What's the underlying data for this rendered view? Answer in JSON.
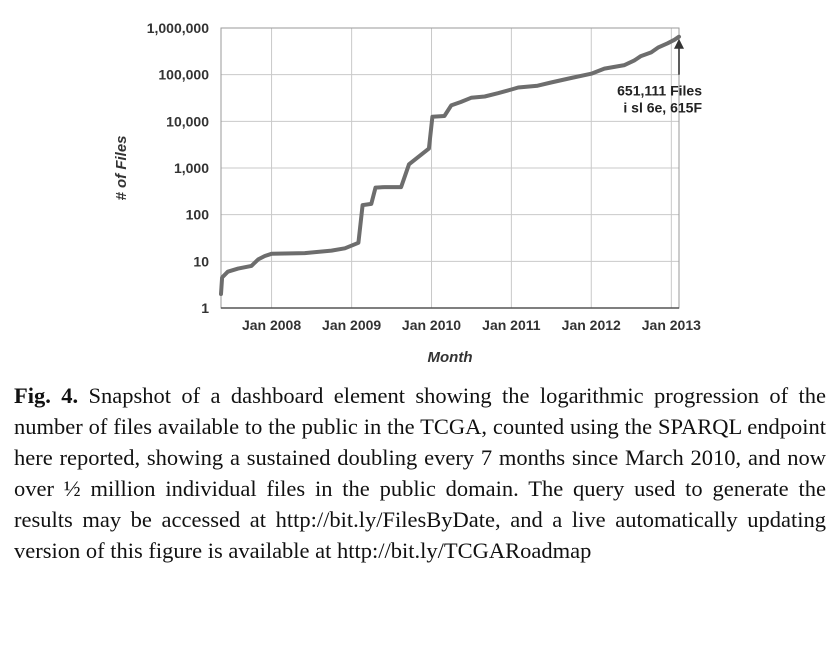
{
  "chart_data": {
    "type": "line",
    "xlabel": "Month",
    "ylabel": "# of Files",
    "yscale": "log",
    "ylim": [
      1,
      1000000
    ],
    "xlim": [
      "2007-05-15",
      "2013-02-05"
    ],
    "y_ticks": [
      {
        "value": 1,
        "label": "1"
      },
      {
        "value": 10,
        "label": "10"
      },
      {
        "value": 100,
        "label": "100"
      },
      {
        "value": 1000,
        "label": "1,000"
      },
      {
        "value": 10000,
        "label": "10,000"
      },
      {
        "value": 100000,
        "label": "100,000"
      },
      {
        "value": 1000000,
        "label": "1,000,000"
      }
    ],
    "x_ticks": [
      {
        "value": "2008-01-01",
        "label": "Jan 2008"
      },
      {
        "value": "2009-01-01",
        "label": "Jan 2009"
      },
      {
        "value": "2010-01-01",
        "label": "Jan 2010"
      },
      {
        "value": "2011-01-01",
        "label": "Jan 2011"
      },
      {
        "value": "2012-01-01",
        "label": "Jan 2012"
      },
      {
        "value": "2013-01-01",
        "label": "Jan 2013"
      }
    ],
    "grid": true,
    "line_color": "#6d6d6d",
    "series": [
      {
        "points": [
          {
            "x": "2007-05-15",
            "y": 2
          },
          {
            "x": "2007-05-20",
            "y": 4.5
          },
          {
            "x": "2007-06-15",
            "y": 6
          },
          {
            "x": "2007-08-01",
            "y": 7
          },
          {
            "x": "2007-10-01",
            "y": 8
          },
          {
            "x": "2007-11-01",
            "y": 11
          },
          {
            "x": "2007-12-01",
            "y": 13
          },
          {
            "x": "2008-01-01",
            "y": 14.5
          },
          {
            "x": "2008-06-01",
            "y": 15
          },
          {
            "x": "2008-10-01",
            "y": 17
          },
          {
            "x": "2008-12-01",
            "y": 19
          },
          {
            "x": "2009-02-01",
            "y": 25
          },
          {
            "x": "2009-02-20",
            "y": 160
          },
          {
            "x": "2009-04-01",
            "y": 170
          },
          {
            "x": "2009-04-20",
            "y": 380
          },
          {
            "x": "2009-06-01",
            "y": 390
          },
          {
            "x": "2009-08-15",
            "y": 390
          },
          {
            "x": "2009-09-20",
            "y": 1200
          },
          {
            "x": "2009-12-20",
            "y": 2600
          },
          {
            "x": "2010-01-05",
            "y": 12500
          },
          {
            "x": "2010-03-01",
            "y": 13000
          },
          {
            "x": "2010-04-01",
            "y": 22000
          },
          {
            "x": "2010-05-15",
            "y": 26000
          },
          {
            "x": "2010-07-01",
            "y": 32000
          },
          {
            "x": "2010-09-01",
            "y": 34000
          },
          {
            "x": "2010-11-01",
            "y": 40000
          },
          {
            "x": "2011-01-01",
            "y": 48000
          },
          {
            "x": "2011-02-01",
            "y": 53000
          },
          {
            "x": "2011-05-01",
            "y": 58000
          },
          {
            "x": "2011-07-01",
            "y": 68000
          },
          {
            "x": "2011-10-01",
            "y": 85000
          },
          {
            "x": "2012-01-01",
            "y": 105000
          },
          {
            "x": "2012-03-01",
            "y": 135000
          },
          {
            "x": "2012-06-01",
            "y": 160000
          },
          {
            "x": "2012-07-15",
            "y": 200000
          },
          {
            "x": "2012-08-15",
            "y": 250000
          },
          {
            "x": "2012-10-01",
            "y": 300000
          },
          {
            "x": "2012-11-01",
            "y": 380000
          },
          {
            "x": "2012-12-15",
            "y": 470000
          },
          {
            "x": "2013-01-15",
            "y": 560000
          },
          {
            "x": "2013-02-05",
            "y": 651111
          }
        ]
      }
    ],
    "annotation": {
      "lines": [
        "651,111 Files",
        "i sl  6e, 615F"
      ],
      "target": {
        "x": "2013-02-05",
        "y": 651111
      }
    }
  },
  "caption": {
    "label": "Fig. 4.",
    "text": "Snapshot of a dashboard element showing the logarithmic progression of the number of files available to the public in the TCGA, counted using the SPARQL endpoint here reported, showing a sustained doubling every 7 months since March 2010, and now over ½ million individual files in the public domain. The query used to generate the results may be accessed at http://bit.ly/FilesByDate, and a live automatically updating version of this figure is available at http://bit.ly/TCGARoadmap"
  }
}
